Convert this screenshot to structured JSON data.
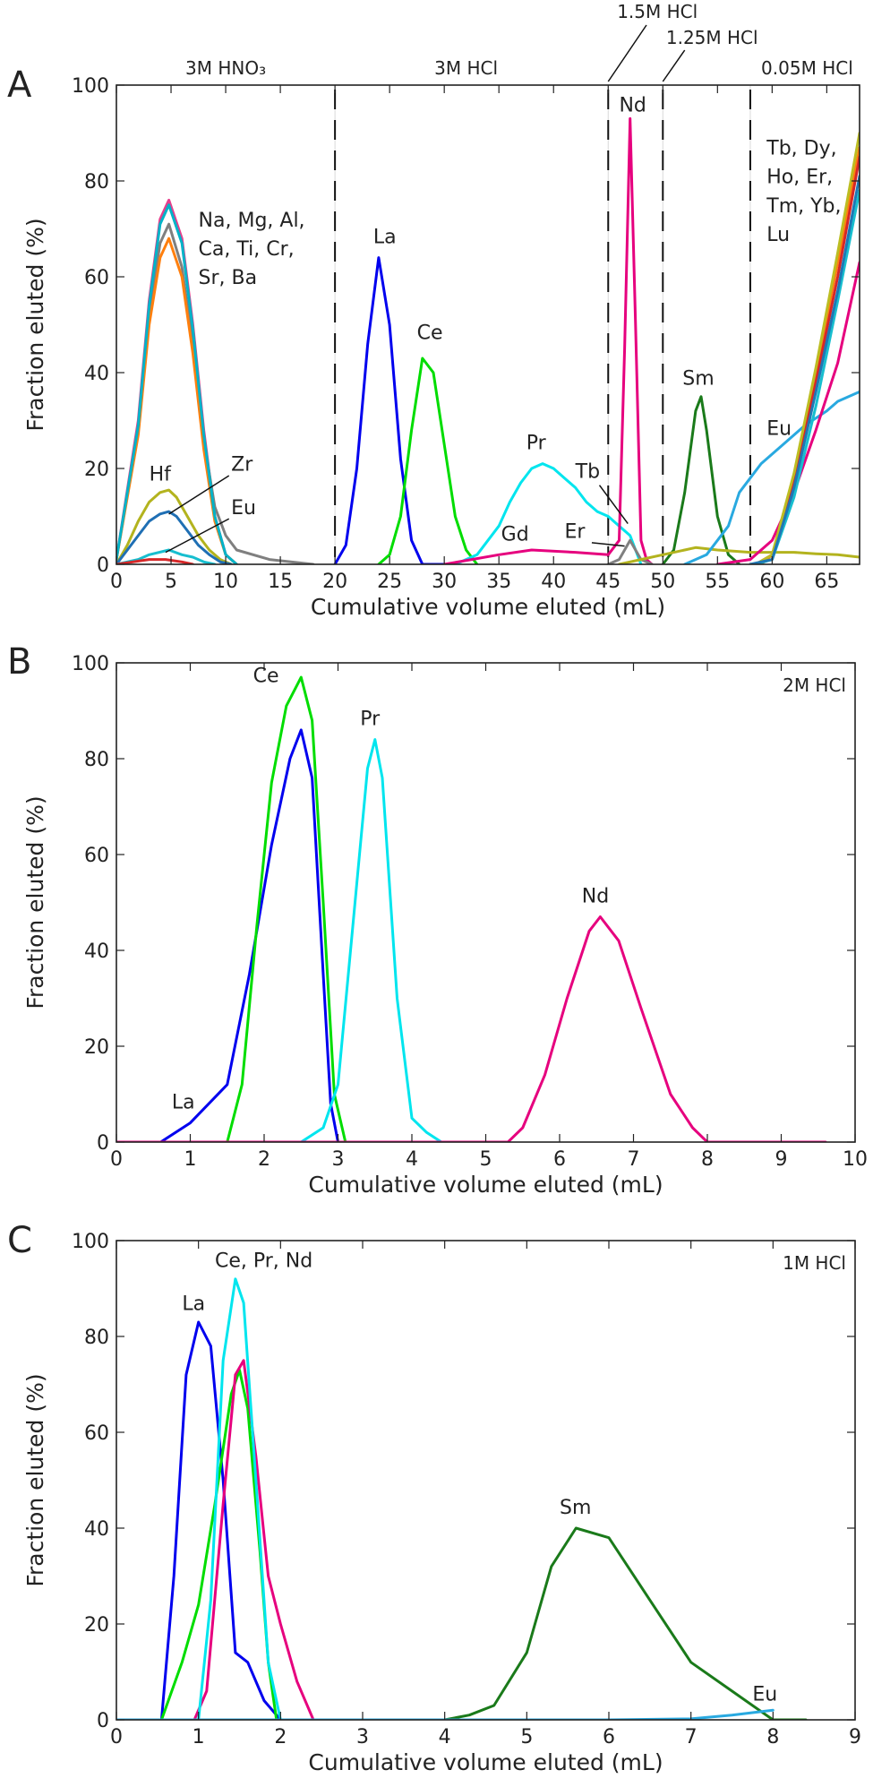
{
  "chart_data": [
    {
      "panel": "A",
      "type": "line",
      "xlabel": "Cumulative volume eluted (mL)",
      "ylabel": "Fraction eluted (%)",
      "xlim": [
        0,
        68
      ],
      "ylim": [
        0,
        100
      ],
      "xticks": [
        0,
        5,
        10,
        15,
        20,
        25,
        30,
        35,
        40,
        45,
        50,
        55,
        60,
        65
      ],
      "yticks": [
        0,
        20,
        40,
        60,
        80,
        100
      ],
      "regions": [
        {
          "label": "3M HNO₃",
          "x_start": 0,
          "x_end": 20
        },
        {
          "label": "3M HCl",
          "x_start": 20,
          "x_end": 45
        },
        {
          "label": "1.5M HCl",
          "x_start": 45,
          "x_end": 50
        },
        {
          "label": "1.25M HCl",
          "x_start": 50,
          "x_end": 58
        },
        {
          "label": "0.05M HCl",
          "x_start": 58,
          "x_end": 68
        }
      ],
      "dividers": [
        20,
        45,
        50,
        58
      ],
      "annotations": [
        {
          "text": "Na, Mg, Al,",
          "x": 7.5,
          "y": 70.5
        },
        {
          "text": "Ca, Ti, Cr,",
          "x": 7.5,
          "y": 64.5
        },
        {
          "text": "Sr, Ba",
          "x": 7.5,
          "y": 58.5
        },
        {
          "text": "Hf",
          "x": 3,
          "y": 17.5
        },
        {
          "text": "Zr",
          "x": 10.5,
          "y": 19.5
        },
        {
          "text": "Eu",
          "x": 10.5,
          "y": 10.5
        },
        {
          "text": "La",
          "x": 23.5,
          "y": 67
        },
        {
          "text": "Ce",
          "x": 27.5,
          "y": 47
        },
        {
          "text": "Pr",
          "x": 37.5,
          "y": 24
        },
        {
          "text": "Gd",
          "x": 35.2,
          "y": 5
        },
        {
          "text": "Tb",
          "x": 42,
          "y": 18
        },
        {
          "text": "Er",
          "x": 41,
          "y": 5.5
        },
        {
          "text": "Nd",
          "x": 46,
          "y": 94.5
        },
        {
          "text": "Sm",
          "x": 51.8,
          "y": 37.5
        },
        {
          "text": "Eu",
          "x": 59.5,
          "y": 27
        },
        {
          "text": "Tb, Dy,",
          "x": 59.5,
          "y": 85.5
        },
        {
          "text": "Ho, Er,",
          "x": 59.5,
          "y": 79.5
        },
        {
          "text": "Tm, Yb,",
          "x": 59.5,
          "y": 73.5
        },
        {
          "text": "Lu",
          "x": 59.5,
          "y": 67.5
        }
      ],
      "series": [
        {
          "color": "#e63e8c",
          "x": [
            0,
            2,
            3,
            4,
            4.8,
            6,
            7,
            8,
            9,
            10,
            11
          ],
          "y": [
            1,
            30,
            55,
            72,
            76,
            68,
            50,
            28,
            10,
            2,
            0
          ]
        },
        {
          "color": "#7f7f7f",
          "x": [
            0,
            2,
            3,
            4,
            4.8,
            6,
            7,
            8,
            9,
            10,
            11,
            14,
            18
          ],
          "y": [
            1,
            28,
            52,
            67,
            71,
            62,
            46,
            26,
            12,
            6,
            3,
            1,
            0
          ]
        },
        {
          "color": "#ff7f0e",
          "x": [
            0,
            2,
            3,
            4,
            4.8,
            6,
            7,
            8,
            9,
            10,
            11
          ],
          "y": [
            1,
            27,
            50,
            64,
            68,
            60,
            44,
            24,
            9,
            2,
            0
          ]
        },
        {
          "color": "#00b3c8",
          "x": [
            0,
            2,
            3,
            4,
            4.8,
            6,
            7,
            8,
            9,
            10,
            11
          ],
          "y": [
            1,
            29,
            54,
            71,
            75,
            67,
            49,
            27,
            10,
            2,
            0
          ]
        },
        {
          "color": "#b3b31e",
          "x": [
            0,
            1,
            2,
            3,
            4,
            4.8,
            5.5,
            6.5,
            7.5,
            8.5,
            9.5,
            10.5
          ],
          "y": [
            0,
            4,
            9,
            13,
            15,
            15.5,
            14,
            10,
            6,
            3,
            1,
            0
          ]
        },
        {
          "color": "#1f6fb4",
          "x": [
            0,
            1,
            2,
            3,
            4,
            4.8,
            5.5,
            6.5,
            7.5,
            8.5,
            9.5,
            10.5
          ],
          "y": [
            0,
            3,
            6,
            9,
            10.5,
            11,
            10,
            7,
            4,
            2,
            0.5,
            0
          ]
        },
        {
          "color": "#17becf",
          "x": [
            0,
            2,
            3,
            4.8,
            6,
            7,
            8,
            9
          ],
          "y": [
            0,
            1,
            2,
            3,
            2,
            1.5,
            0.5,
            0
          ]
        },
        {
          "color": "#d62728",
          "x": [
            0,
            1.5,
            3,
            4.5,
            6,
            7
          ],
          "y": [
            0,
            0.5,
            1,
            1,
            0.5,
            0
          ]
        },
        {
          "color": "#0000ee",
          "x": [
            20,
            21,
            22,
            23,
            24,
            25,
            26,
            27,
            28,
            30
          ],
          "y": [
            0,
            4,
            20,
            46,
            64,
            50,
            22,
            5,
            0,
            0
          ]
        },
        {
          "color": "#00dd00",
          "x": [
            24,
            25,
            26,
            27,
            28,
            29,
            30,
            31,
            32,
            33
          ],
          "y": [
            0,
            2,
            10,
            28,
            43,
            40,
            25,
            10,
            3,
            0
          ]
        },
        {
          "color": "#00e5ee",
          "x": [
            31,
            33,
            35,
            36,
            37,
            38,
            39,
            40,
            41,
            42,
            43,
            44,
            45,
            46,
            47,
            48
          ],
          "y": [
            0,
            2,
            8,
            13,
            17,
            20,
            21,
            20,
            18,
            16,
            13,
            11,
            10,
            8,
            6,
            0
          ]
        },
        {
          "color": "#e6007e",
          "x": [
            30,
            35,
            38,
            42,
            45,
            46,
            46.5,
            47,
            47.5,
            48,
            48.5,
            49
          ],
          "y": [
            0,
            2,
            3,
            2.5,
            2,
            5,
            45,
            93,
            50,
            5,
            1,
            0
          ]
        },
        {
          "color": "#808080",
          "x": [
            45,
            46,
            46.5,
            47,
            47.5,
            48,
            49
          ],
          "y": [
            0,
            1,
            3,
            5,
            3,
            1,
            0
          ]
        },
        {
          "color": "#1a7a1a",
          "x": [
            50,
            51,
            52,
            53,
            53.5,
            54,
            55,
            56,
            57
          ],
          "y": [
            0,
            3,
            15,
            32,
            35,
            28,
            10,
            2,
            0
          ]
        },
        {
          "color": "#b3b31e",
          "x": [
            46,
            48,
            50,
            52,
            53,
            55,
            58,
            60,
            62,
            64,
            66,
            68
          ],
          "y": [
            0,
            1,
            2,
            3,
            3.5,
            3,
            2.5,
            2.5,
            2.5,
            2.2,
            2,
            1.5
          ]
        },
        {
          "color": "#29a9e0",
          "x": [
            52,
            54,
            56,
            57,
            58,
            59,
            61,
            63,
            65,
            66,
            68
          ],
          "y": [
            0,
            2,
            8,
            15,
            18,
            21,
            25,
            29,
            32,
            34,
            36
          ]
        },
        {
          "color": "#e6007e",
          "x": [
            55,
            58,
            60,
            62,
            64,
            66,
            68
          ],
          "y": [
            0,
            1,
            5,
            15,
            28,
            42,
            63
          ]
        },
        {
          "color": "#ff7f0e",
          "x": [
            58,
            59,
            60,
            62,
            64,
            66,
            68
          ],
          "y": [
            0,
            0,
            2,
            18,
            40,
            63,
            87
          ]
        },
        {
          "color": "#d62728",
          "x": [
            58.5,
            60,
            62,
            64,
            66,
            68
          ],
          "y": [
            0,
            2,
            17,
            38,
            60,
            85
          ]
        },
        {
          "color": "#bcbd22",
          "x": [
            58.5,
            60,
            62,
            64,
            66,
            68
          ],
          "y": [
            0,
            2,
            19,
            41,
            65,
            90
          ]
        },
        {
          "color": "#17becf",
          "x": [
            58.5,
            60,
            62,
            64,
            66,
            68
          ],
          "y": [
            0,
            1,
            14,
            33,
            55,
            78
          ]
        },
        {
          "color": "#1f77b4",
          "x": [
            58,
            60,
            62,
            64,
            66,
            68
          ],
          "y": [
            0,
            1,
            16,
            36,
            57,
            81
          ]
        }
      ]
    },
    {
      "panel": "B",
      "type": "line",
      "xlabel": "Cumulative volume eluted (mL)",
      "ylabel": "Fraction eluted (%)",
      "xlim": [
        0,
        10
      ],
      "ylim": [
        0,
        100
      ],
      "xticks": [
        0,
        1,
        2,
        3,
        4,
        5,
        6,
        7,
        8,
        9,
        10
      ],
      "yticks": [
        0,
        20,
        40,
        60,
        80,
        100
      ],
      "regions": [
        {
          "label": "2M HCl",
          "x_start": 0,
          "x_end": 10
        }
      ],
      "annotations": [
        {
          "text": "La",
          "x": 0.75,
          "y": 7
        },
        {
          "text": "Ce",
          "x": 1.85,
          "y": 96
        },
        {
          "text": "Pr",
          "x": 3.3,
          "y": 87
        },
        {
          "text": "Nd",
          "x": 6.3,
          "y": 50
        }
      ],
      "series": [
        {
          "color": "#0000ee",
          "x": [
            0,
            0.6,
            1.0,
            1.5,
            1.8,
            2.1,
            2.35,
            2.5,
            2.65,
            2.8,
            2.9,
            3.0,
            3.4
          ],
          "y": [
            0,
            0,
            4,
            12,
            35,
            62,
            80,
            86,
            76,
            35,
            8,
            0,
            0
          ]
        },
        {
          "color": "#00dd00",
          "x": [
            0,
            1.5,
            1.7,
            1.9,
            2.1,
            2.3,
            2.5,
            2.65,
            2.8,
            2.95,
            3.1,
            3.5
          ],
          "y": [
            0,
            0,
            12,
            45,
            75,
            91,
            97,
            88,
            50,
            10,
            0,
            0
          ]
        },
        {
          "color": "#00e5ee",
          "x": [
            0,
            2.5,
            2.8,
            3.0,
            3.2,
            3.4,
            3.5,
            3.6,
            3.8,
            4.0,
            4.2,
            4.4,
            4.8
          ],
          "y": [
            0,
            0,
            3,
            12,
            45,
            78,
            84,
            76,
            30,
            5,
            2,
            0,
            0
          ]
        },
        {
          "color": "#e6007e",
          "x": [
            0,
            5.3,
            5.5,
            5.8,
            6.1,
            6.4,
            6.55,
            6.8,
            7.1,
            7.5,
            7.8,
            8.0,
            9.6
          ],
          "y": [
            0,
            0,
            3,
            14,
            30,
            44,
            47,
            42,
            28,
            10,
            3,
            0,
            0
          ]
        }
      ]
    },
    {
      "panel": "C",
      "type": "line",
      "xlabel": "Cumulative volume eluted (mL)",
      "ylabel": "Fraction eluted (%)",
      "xlim": [
        0,
        9
      ],
      "ylim": [
        0,
        100
      ],
      "xticks": [
        0,
        1,
        2,
        3,
        4,
        5,
        6,
        7,
        8,
        9
      ],
      "yticks": [
        0,
        20,
        40,
        60,
        80,
        100
      ],
      "regions": [
        {
          "label": "1M HCl",
          "x_start": 0,
          "x_end": 9
        }
      ],
      "annotations": [
        {
          "text": "La",
          "x": 0.8,
          "y": 85.5
        },
        {
          "text": "Ce, Pr, Nd",
          "x": 1.2,
          "y": 94.5
        },
        {
          "text": "Sm",
          "x": 5.4,
          "y": 43
        },
        {
          "text": "Eu",
          "x": 7.75,
          "y": 4
        }
      ],
      "series": [
        {
          "color": "#0000ee",
          "x": [
            0,
            0.55,
            0.7,
            0.85,
            1.0,
            1.15,
            1.3,
            1.45,
            1.6,
            1.8,
            2.0,
            2.5
          ],
          "y": [
            0,
            0,
            30,
            72,
            83,
            78,
            50,
            14,
            12,
            4,
            0,
            0
          ]
        },
        {
          "color": "#00dd00",
          "x": [
            0,
            0.55,
            0.8,
            1.0,
            1.2,
            1.4,
            1.5,
            1.6,
            1.75,
            1.85,
            1.95,
            2.5
          ],
          "y": [
            0,
            0,
            12,
            24,
            45,
            68,
            73,
            65,
            35,
            12,
            0,
            0
          ]
        },
        {
          "color": "#e6007e",
          "x": [
            0,
            0.95,
            1.1,
            1.3,
            1.45,
            1.55,
            1.7,
            1.85,
            2.0,
            2.2,
            2.4,
            3.0,
            3.4
          ],
          "y": [
            0,
            0,
            6,
            45,
            72,
            75,
            55,
            30,
            20,
            8,
            0,
            0,
            0
          ]
        },
        {
          "color": "#00e5ee",
          "x": [
            0,
            1.0,
            1.15,
            1.3,
            1.45,
            1.55,
            1.7,
            1.85,
            2.0,
            2.5
          ],
          "y": [
            0,
            0,
            25,
            75,
            92,
            87,
            50,
            12,
            0,
            0
          ]
        },
        {
          "color": "#1a7a1a",
          "x": [
            0,
            4.0,
            4.3,
            4.6,
            5.0,
            5.3,
            5.6,
            6.0,
            6.5,
            7.0,
            7.5,
            8.0,
            8.4
          ],
          "y": [
            0,
            0,
            1,
            3,
            14,
            32,
            40,
            38,
            25,
            12,
            6,
            0,
            0
          ]
        },
        {
          "color": "#29a9e0",
          "x": [
            0,
            6.0,
            7.0,
            7.5,
            8.0
          ],
          "y": [
            0,
            0,
            0.2,
            1,
            2
          ]
        }
      ]
    }
  ]
}
